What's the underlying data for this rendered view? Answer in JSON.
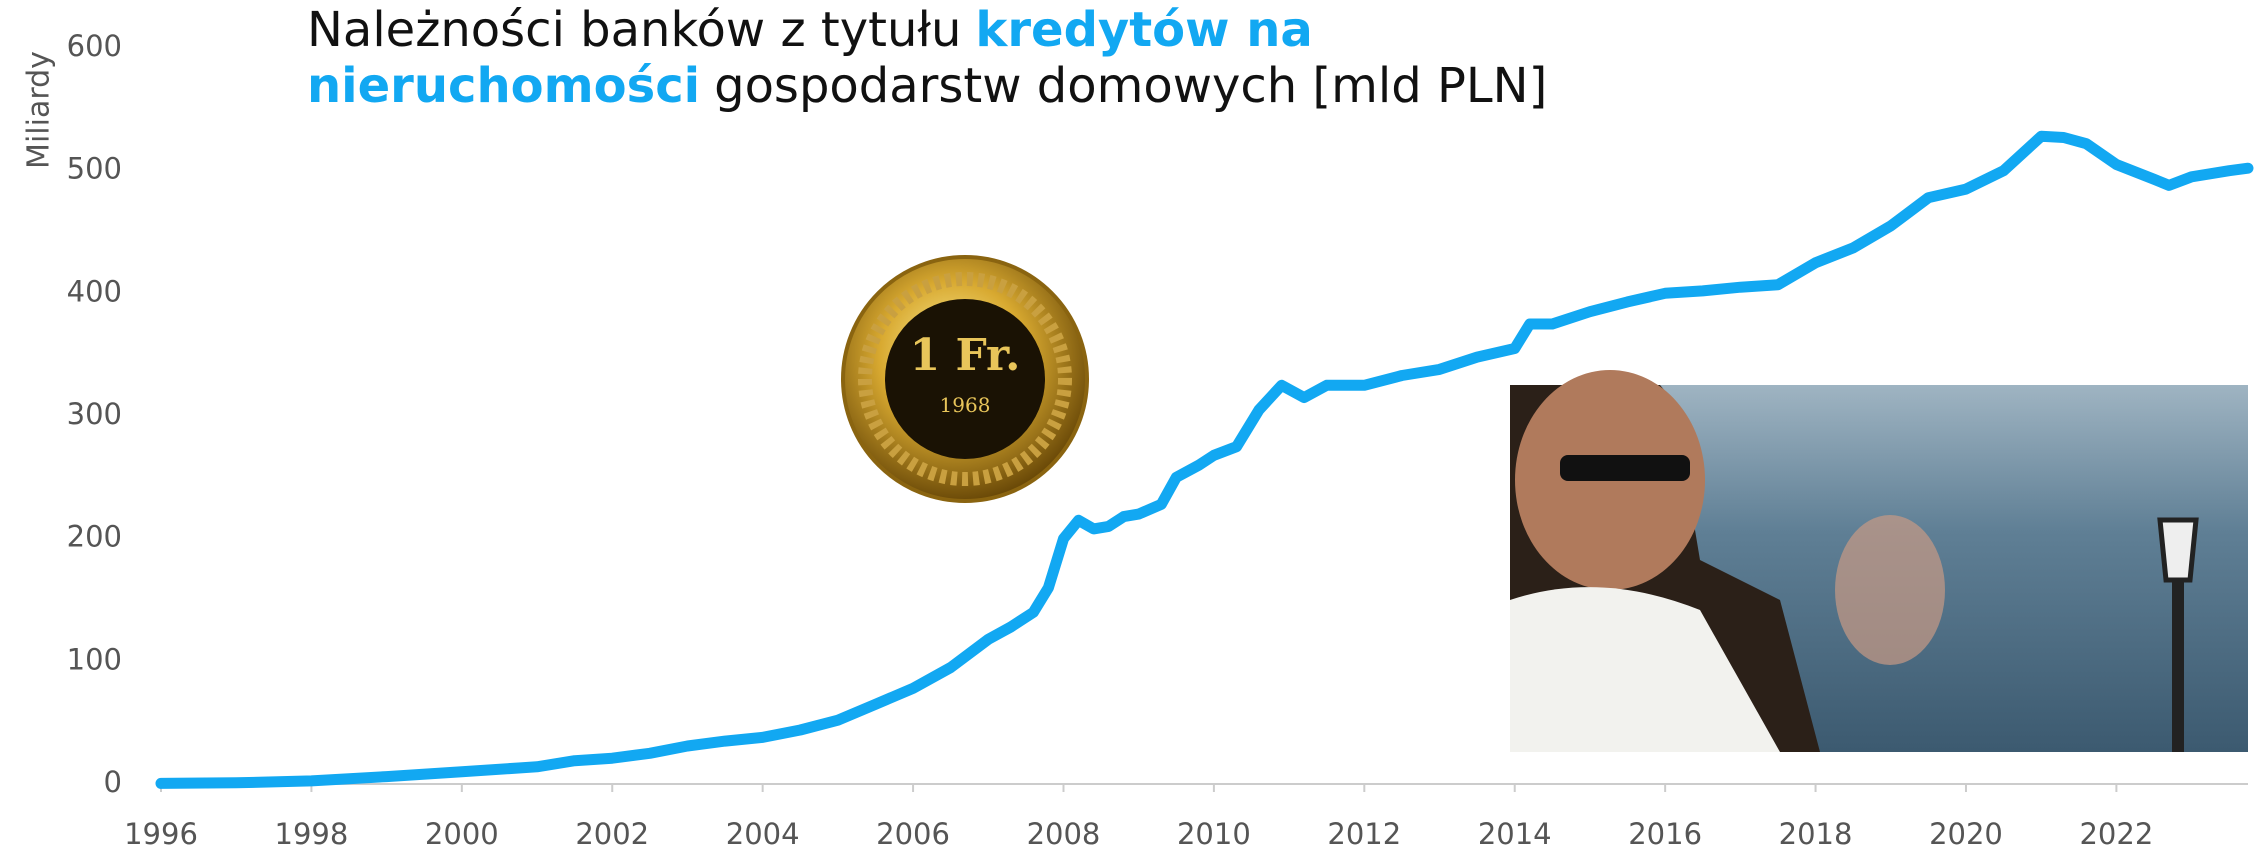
{
  "chart_data": {
    "type": "line",
    "title": {
      "part1": "Należności banków z tytułu",
      "highlight1": "kredytów na",
      "highlight2": "nieruchomości",
      "part2": "gospodarstw domowych [mld PLN]"
    },
    "y_label": "Miliardy",
    "x": [
      1996,
      1997,
      1998,
      1999,
      2000,
      2001,
      2001.5,
      2002,
      2002.5,
      2003,
      2003.5,
      2004,
      2004.5,
      2005,
      2005.5,
      2006,
      2006.5,
      2007,
      2007.3,
      2007.6,
      2007.8,
      2008,
      2008.2,
      2008.4,
      2008.6,
      2008.8,
      2009,
      2009.3,
      2009.5,
      2009.8,
      2010,
      2010.3,
      2010.6,
      2010.9,
      2011.2,
      2011.5,
      2012,
      2012.5,
      2013,
      2013.5,
      2014,
      2014.2,
      2014.5,
      2015,
      2015.5,
      2016,
      2016.5,
      2017,
      2017.5,
      2018,
      2018.5,
      2019,
      2019.5,
      2020,
      2020.5,
      2021,
      2021.3,
      2021.6,
      2022,
      2022.5,
      2022.7,
      2023,
      2023.5,
      2023.75
    ],
    "values": [
      0.5,
      1,
      2.5,
      6,
      10,
      14,
      19,
      21,
      25,
      31,
      35,
      38,
      44,
      52,
      65,
      78,
      95,
      118,
      128,
      140,
      160,
      200,
      215,
      208,
      210,
      218,
      220,
      228,
      250,
      260,
      268,
      275,
      305,
      325,
      315,
      325,
      325,
      333,
      338,
      348,
      355,
      375,
      375,
      385,
      393,
      400,
      402,
      405,
      407,
      425,
      437,
      455,
      478,
      485,
      500,
      528,
      527,
      522,
      505,
      493,
      488,
      495,
      500,
      502
    ],
    "color": "#12a8f2",
    "xlim": [
      1996,
      2023.75
    ],
    "xticks": [
      1996,
      1998,
      2000,
      2002,
      2004,
      2006,
      2008,
      2010,
      2012,
      2014,
      2016,
      2018,
      2020,
      2022
    ],
    "ylim": [
      0,
      600
    ],
    "yticks": [
      0,
      100,
      200,
      300,
      400,
      500,
      600
    ]
  }
}
